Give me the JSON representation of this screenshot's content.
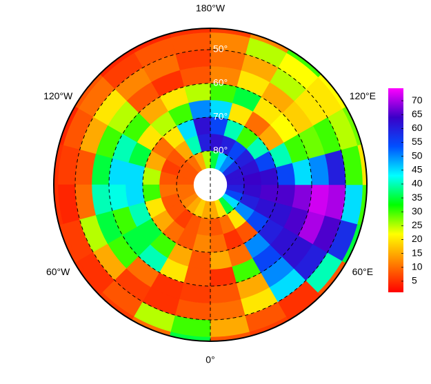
{
  "chart_data": {
    "type": "polar-map",
    "lon_labels": [
      {
        "value": 180,
        "label": "180°W"
      },
      {
        "value": 120,
        "label": "120°E"
      },
      {
        "value": 60,
        "label": "60°E"
      },
      {
        "value": 0,
        "label": "0°"
      },
      {
        "value": -60,
        "label": "60°W"
      },
      {
        "value": -120,
        "label": "120°W"
      }
    ],
    "lat_ticks": [
      {
        "value": 50,
        "label": "50°"
      },
      {
        "value": 60,
        "label": "60°"
      },
      {
        "value": 70,
        "label": "70°"
      },
      {
        "value": 80,
        "label": "80°"
      }
    ],
    "values": [
      [
        8,
        6,
        5,
        8,
        35,
        30,
        20,
        28,
        22,
        30,
        12,
        6,
        5,
        4,
        4,
        8,
        4,
        5,
        5,
        6,
        5,
        6,
        10,
        35
      ],
      [
        15,
        8,
        5,
        40,
        58,
        45,
        30,
        25,
        20,
        22,
        25,
        12,
        8,
        8,
        6,
        10,
        8,
        6,
        4,
        6,
        5,
        8,
        25,
        30
      ],
      [
        10,
        20,
        45,
        60,
        65,
        70,
        60,
        30,
        20,
        25,
        15,
        10,
        6,
        10,
        12,
        20,
        15,
        8,
        10,
        25,
        15,
        6,
        5,
        8
      ],
      [
        8,
        15,
        50,
        62,
        70,
        72,
        50,
        28,
        18,
        15,
        20,
        12,
        8,
        5,
        8,
        25,
        30,
        35,
        40,
        35,
        30,
        10,
        5,
        6
      ],
      [
        5,
        30,
        55,
        62,
        65,
        68,
        45,
        30,
        22,
        20,
        35,
        30,
        25,
        20,
        15,
        30,
        40,
        45,
        42,
        30,
        35,
        40,
        20,
        8
      ],
      [
        15,
        10,
        50,
        60,
        62,
        65,
        55,
        40,
        15,
        10,
        20,
        45,
        50,
        30,
        25,
        20,
        35,
        45,
        45,
        40,
        35,
        30,
        15,
        8
      ],
      [
        10,
        5,
        8,
        55,
        62,
        65,
        63,
        55,
        40,
        30,
        40,
        55,
        62,
        45,
        20,
        10,
        15,
        25,
        30,
        20,
        15,
        10,
        8,
        12
      ],
      [
        8,
        10,
        20,
        50,
        60,
        63,
        64,
        62,
        60,
        55,
        60,
        62,
        60,
        40,
        15,
        8,
        6,
        8,
        10,
        8,
        8,
        6,
        8,
        10
      ],
      [
        15,
        20,
        35,
        45,
        55,
        60,
        62,
        62,
        58,
        50,
        45,
        35,
        25,
        15,
        10,
        8,
        8,
        8,
        10,
        10,
        12,
        15,
        18,
        15
      ]
    ],
    "colormap": [
      "#ff0000",
      "#ff8000",
      "#ffff00",
      "#00ff00",
      "#00ffff",
      "#0050ff",
      "#3a00c8",
      "#ff00ff"
    ],
    "zlim": [
      1,
      74.5
    ],
    "colorbar_ticks": [
      5,
      10,
      15,
      20,
      25,
      30,
      35,
      40,
      45,
      50,
      55,
      60,
      65,
      70
    ]
  }
}
